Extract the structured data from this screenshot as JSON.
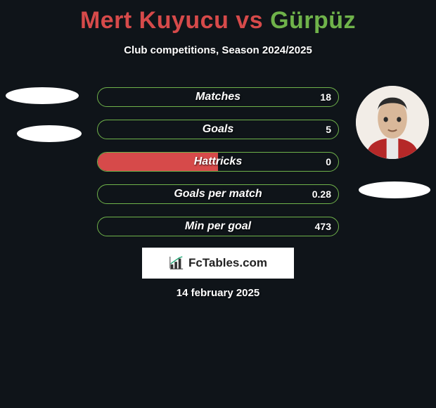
{
  "title": {
    "p1": "Mert Kuyucu",
    "vs": " vs ",
    "p2": "Gürpüz",
    "color_p1": "#d64a4a",
    "color_p2": "#6fb24a",
    "fontsize": 34
  },
  "subtitle": "Club competitions, Season 2024/2025",
  "bars": [
    {
      "label": "Matches",
      "left_val": "",
      "right_val": "18",
      "left_pct": 0,
      "right_pct": 100
    },
    {
      "label": "Goals",
      "left_val": "",
      "right_val": "5",
      "left_pct": 0,
      "right_pct": 100
    },
    {
      "label": "Hattricks",
      "left_val": "",
      "right_val": "0",
      "left_pct": 50,
      "right_pct": 50
    },
    {
      "label": "Goals per match",
      "left_val": "",
      "right_val": "0.28",
      "left_pct": 0,
      "right_pct": 100
    },
    {
      "label": "Min per goal",
      "left_val": "",
      "right_val": "473",
      "left_pct": 0,
      "right_pct": 100
    }
  ],
  "bar_style": {
    "border_color": "#6fb24a",
    "fill_left_color": "#d64a4a",
    "fill_right_color": "transparent",
    "height": 28,
    "gap": 18,
    "radius": 16,
    "label_fontsize": 16,
    "val_fontsize": 14
  },
  "branding": {
    "text": "FcTables.com",
    "icon": "bar-chart-icon",
    "bg": "#ffffff",
    "fg": "#222222"
  },
  "date": "14 february 2025",
  "colors": {
    "background": "#0f1419",
    "placeholder": "#ffffff"
  },
  "avatars": {
    "left_present": false,
    "right_present": true
  }
}
